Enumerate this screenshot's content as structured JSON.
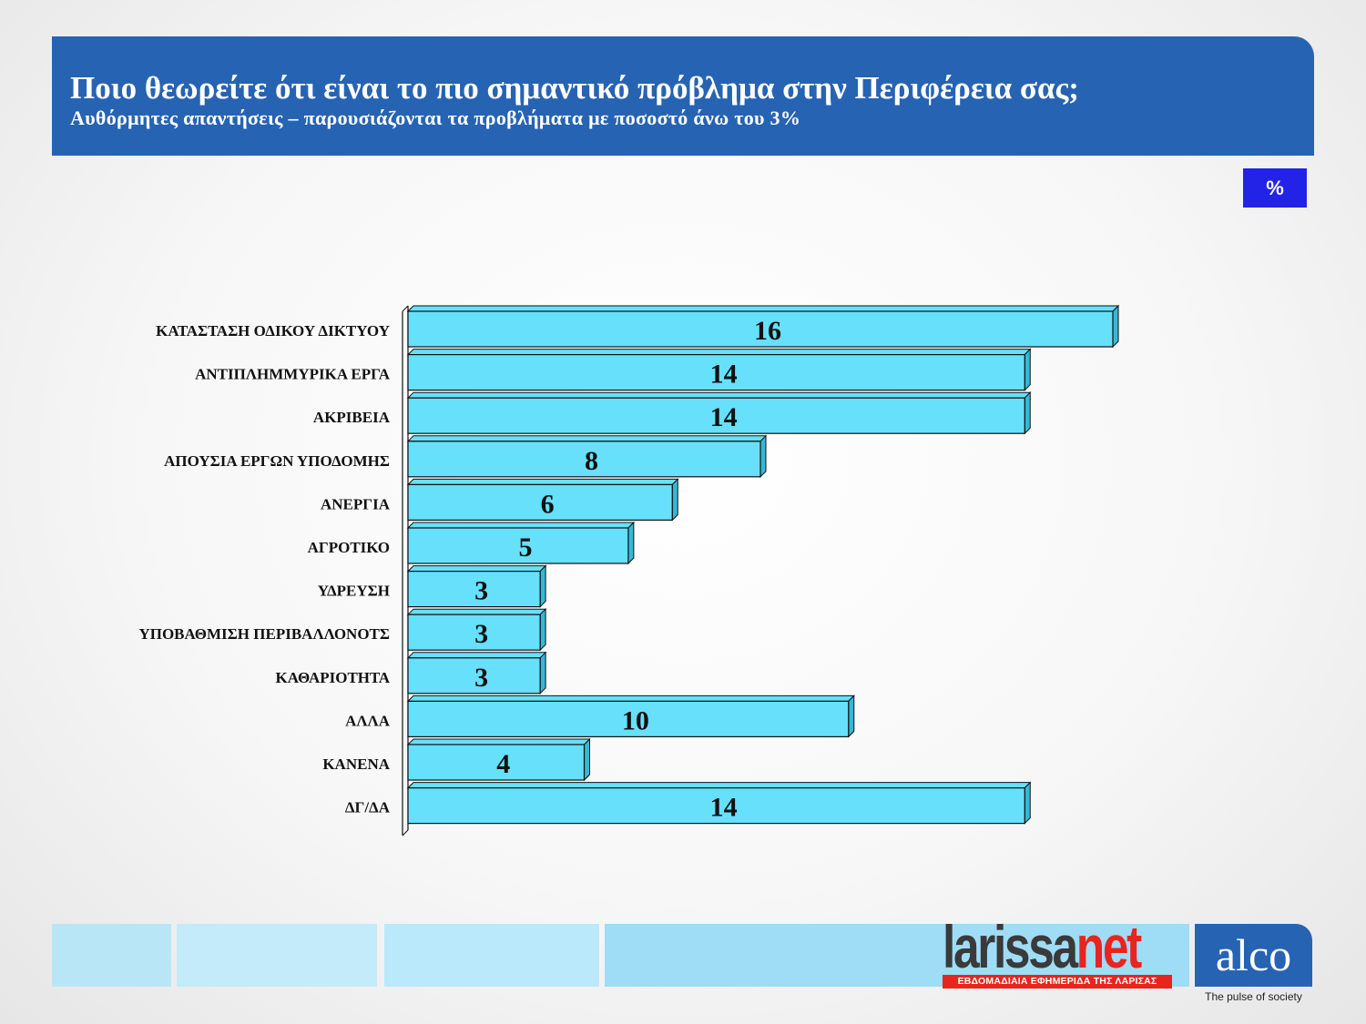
{
  "header": {
    "title": "Ποιο θεωρείτε ότι είναι το πιο σημαντικό πρόβλημα στην Περιφέρεια σας;",
    "subtitle": "Αυθόρμητες απαντήσεις – παρουσιάζονται τα προβλήματα με ποσοστό άνω του 3%"
  },
  "unit_badge": "%",
  "chart_data": {
    "type": "bar",
    "orientation": "horizontal",
    "categories": [
      "ΚΑΤΑΣΤΑΣΗ ΟΔΙΚΟΥ ΔΙΚΤΥΟΥ",
      "ΑΝΤΙΠΛΗΜΜΥΡΙΚΑ ΕΡΓΑ",
      "ΑΚΡΙΒΕΙΑ",
      "ΑΠΟΥΣΙΑ ΕΡΓΩΝ ΥΠΟΔΟΜΗΣ",
      "ΑΝΕΡΓΙΑ",
      "ΑΓΡΟΤΙΚΟ",
      "ΥΔΡΕΥΣΗ",
      "ΥΠΟΒΑΘΜΙΣΗ ΠΕΡΙΒΑΛΛΟΝΟΤΣ",
      "ΚΑΘΑΡΙΟΤΗΤΑ",
      "ΑΛΛΑ",
      "ΚΑΝΕΝΑ",
      "ΔΓ/ΔΑ"
    ],
    "values": [
      16,
      14,
      14,
      8,
      6,
      5,
      3,
      3,
      3,
      10,
      4,
      14
    ],
    "xlim": [
      0,
      16
    ],
    "bar_color": "#66e0fb",
    "bar_side_color": "#35b8d6",
    "grid": false,
    "legend": "none"
  },
  "footer": {
    "larissanet_logo": "larissanet",
    "larissanet_logo_part1": "larissa",
    "larissanet_logo_part2": "net",
    "larissanet_tagline": "ΕΒΔΟΜΑΔΙΑΙΑ ΕΦΗΜΕΡΙΔΑ ΤΗΣ ΛΑΡΙΣΑΣ",
    "alco_logo": "alco",
    "alco_tagline": "The pulse of society"
  },
  "colors": {
    "header_bg": "#2763b3",
    "badge_bg": "#2323e8",
    "larissanet_red": "#e8251d"
  }
}
